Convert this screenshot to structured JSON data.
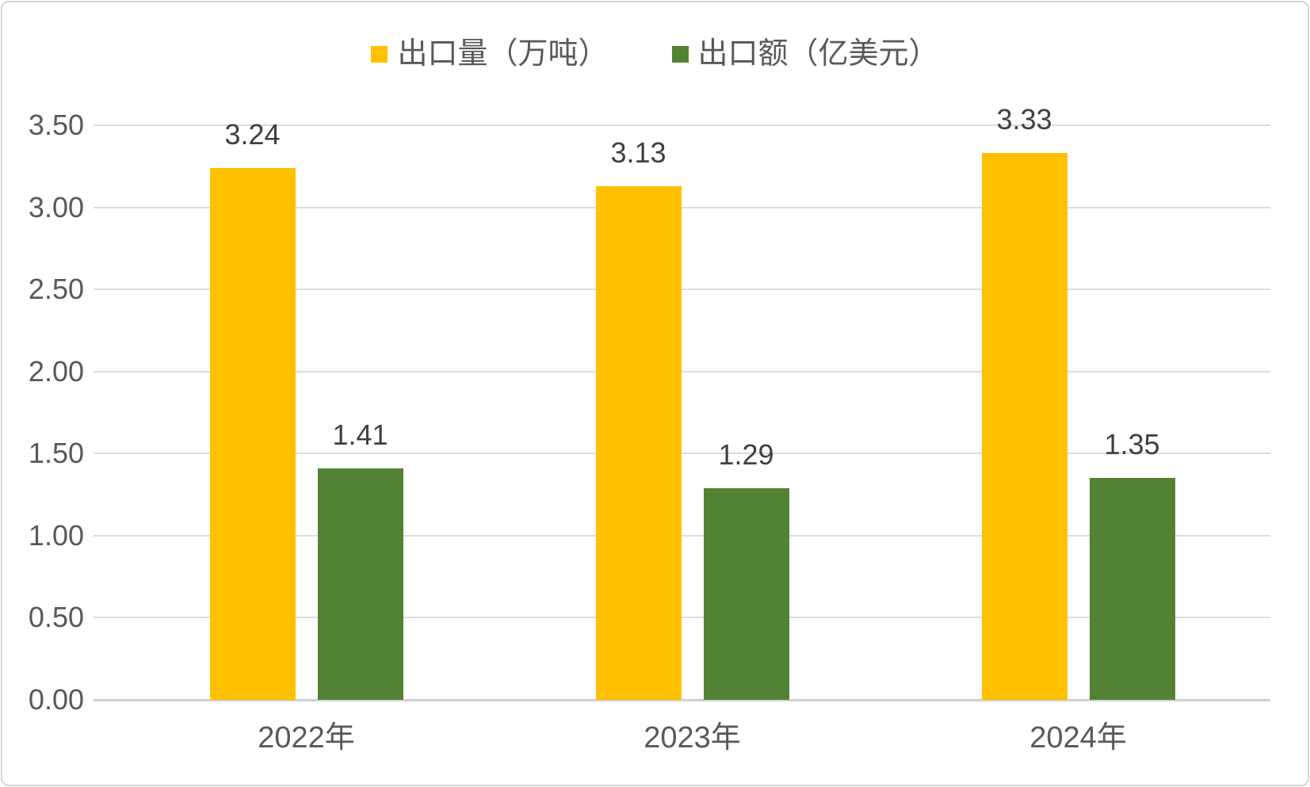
{
  "chart_data": {
    "type": "bar",
    "title": "",
    "categories": [
      "2022年",
      "2023年",
      "2024年"
    ],
    "series": [
      {
        "name": "出口量（万吨）",
        "color": "#FFC000",
        "values": [
          3.24,
          3.13,
          3.33
        ]
      },
      {
        "name": "出口额（亿美元）",
        "color": "#548235",
        "values": [
          1.41,
          1.29,
          1.35
        ]
      }
    ],
    "data_labels": [
      [
        "3.24",
        "3.13",
        "3.33"
      ],
      [
        "1.41",
        "1.29",
        "1.35"
      ]
    ],
    "xlabel": "",
    "ylabel": "",
    "ylim": [
      0,
      3.5
    ],
    "ytick_step": 0.5,
    "ytick_labels": [
      "0.00",
      "0.50",
      "1.00",
      "1.50",
      "2.00",
      "2.50",
      "3.00",
      "3.50"
    ],
    "grid": true,
    "legend_position": "top",
    "colors": {
      "gridline": "#DCDCDC",
      "axis_line": "#D0D0D0",
      "tick_text": "#595959",
      "data_label_text": "#404040",
      "frame_border": "#D5D5D5",
      "background": "#FFFFFF"
    }
  }
}
